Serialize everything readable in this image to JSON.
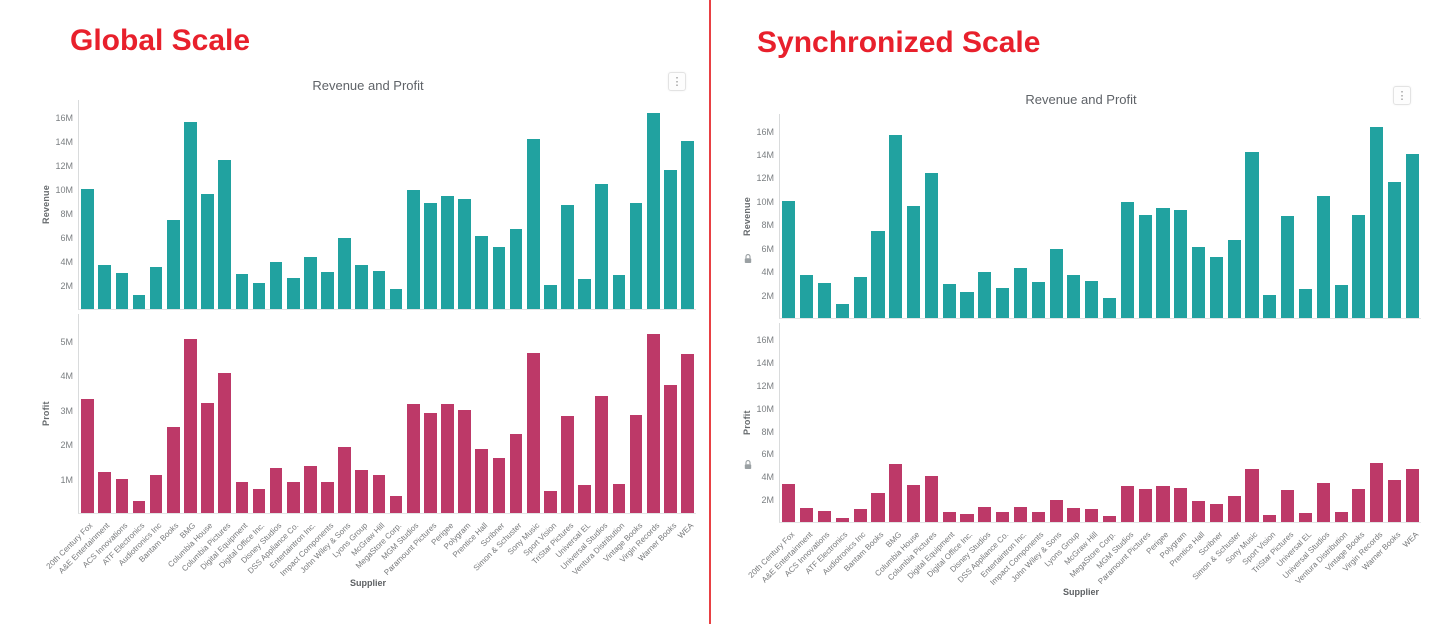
{
  "page": {
    "background": "#ffffff",
    "divider_color": "#e84043",
    "heading_color": "#e8202c"
  },
  "chart_data": {
    "type": "bar",
    "categories": [
      "20th Century Fox",
      "A&E Entertainment",
      "ACS Innovations",
      "ATF Electronics",
      "Audiotronics Inc",
      "Bantam Books",
      "BMG",
      "Columbia House",
      "Columbia Pictures",
      "Digital Equipment",
      "Digital Office Inc.",
      "Disney Studios",
      "DSS Appliance Co.",
      "Entertaintron Inc.",
      "Impact Components",
      "John Wiley & Sons",
      "Lyons Group",
      "McGraw Hill",
      "MegaStore Corp.",
      "MGM Studios",
      "Paramount Pictures",
      "Perigee",
      "Polygram",
      "Prentice Hall",
      "Scribner",
      "Simon & Schuster",
      "Sony Music",
      "Sport Vision",
      "TriStar Pictures",
      "Universal EL",
      "Universal Studios",
      "Ventura Distribution",
      "Vintage Books",
      "Virgin Records",
      "Warner Books",
      "WEA"
    ],
    "series": [
      {
        "name": "Revenue",
        "color": "#21a2a0",
        "unit": "M",
        "values": [
          10.0,
          3.7,
          3.0,
          1.2,
          3.5,
          7.4,
          15.6,
          9.6,
          12.4,
          2.9,
          2.2,
          3.9,
          2.6,
          4.3,
          3.1,
          5.9,
          3.7,
          3.2,
          1.7,
          9.9,
          8.8,
          9.4,
          9.2,
          6.1,
          5.2,
          6.7,
          14.2,
          2.0,
          8.7,
          2.5,
          10.4,
          2.8,
          8.8,
          16.3,
          11.6,
          14.0
        ]
      },
      {
        "name": "Profit",
        "color": "#bd3968",
        "unit": "M",
        "values": [
          3.3,
          1.2,
          1.0,
          0.35,
          1.1,
          2.5,
          5.05,
          3.2,
          4.05,
          0.9,
          0.7,
          1.3,
          0.9,
          1.35,
          0.9,
          1.9,
          1.25,
          1.1,
          0.5,
          3.15,
          2.9,
          3.15,
          3.0,
          1.85,
          1.6,
          2.3,
          4.65,
          0.65,
          2.8,
          0.8,
          3.4,
          0.85,
          2.85,
          5.2,
          3.7,
          4.6
        ]
      }
    ],
    "panels": [
      {
        "heading": "Global Scale",
        "title": "Revenue and Profit",
        "xlabel": "Supplier",
        "menu_icon": "kebab-menu",
        "axes": [
          {
            "series": "Revenue",
            "ylabel": "Revenue",
            "tick_labels": [
              "2M",
              "4M",
              "6M",
              "8M",
              "10M",
              "12M",
              "14M",
              "16M"
            ],
            "tick_values": [
              2,
              4,
              6,
              8,
              10,
              12,
              14,
              16
            ],
            "ymax": 17.5,
            "locked": false
          },
          {
            "series": "Profit",
            "ylabel": "Profit",
            "tick_labels": [
              "1M",
              "2M",
              "3M",
              "4M",
              "5M"
            ],
            "tick_values": [
              1,
              2,
              3,
              4,
              5
            ],
            "ymax": 5.8,
            "locked": false
          }
        ]
      },
      {
        "heading": "Synchronized Scale",
        "title": "Revenue and Profit",
        "xlabel": "Supplier",
        "menu_icon": "kebab-menu",
        "axes": [
          {
            "series": "Revenue",
            "ylabel": "Revenue",
            "tick_labels": [
              "2M",
              "4M",
              "6M",
              "8M",
              "10M",
              "12M",
              "14M",
              "16M"
            ],
            "tick_values": [
              2,
              4,
              6,
              8,
              10,
              12,
              14,
              16
            ],
            "ymax": 17.5,
            "locked": true
          },
          {
            "series": "Profit",
            "ylabel": "Profit",
            "tick_labels": [
              "2M",
              "4M",
              "6M",
              "8M",
              "10M",
              "12M",
              "14M",
              "16M"
            ],
            "tick_values": [
              2,
              4,
              6,
              8,
              10,
              12,
              14,
              16
            ],
            "ymax": 17.5,
            "locked": true
          }
        ]
      }
    ],
    "kebab_glyph": "⋮",
    "legend_position": "none",
    "grid": false
  }
}
